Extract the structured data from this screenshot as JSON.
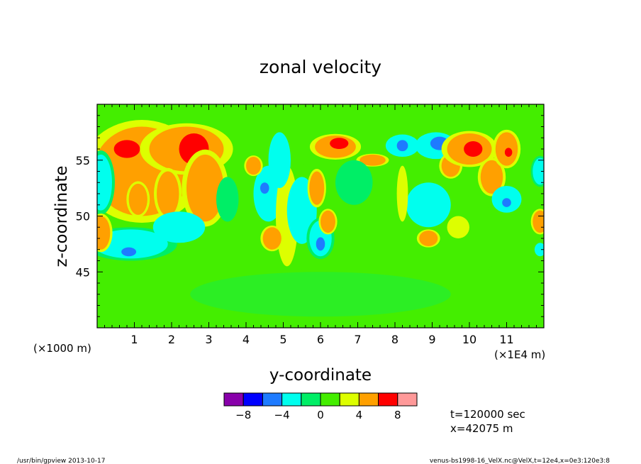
{
  "chart_data": {
    "type": "heatmap",
    "title": "zonal velocity",
    "xlabel": "y-coordinate",
    "ylabel": "z-coordinate",
    "x_scale_note": "(×1E4 m)",
    "y_scale_note": "(×1000 m)",
    "xlim": [
      0,
      12
    ],
    "ylim": [
      40,
      60
    ],
    "x_ticks": [
      1,
      2,
      3,
      4,
      5,
      6,
      7,
      8,
      9,
      10,
      11
    ],
    "y_ticks": [
      45,
      50,
      55
    ],
    "colorbar": {
      "colors": [
        "#8800aa",
        "#0000ff",
        "#1e7bff",
        "#00ffee",
        "#00ee66",
        "#44ee00",
        "#ddff00",
        "#ffa000",
        "#ff0000",
        "#ff9999"
      ],
      "tick_labels": [
        "−8",
        "−4",
        "0",
        "4",
        "8"
      ]
    },
    "annotations": {
      "time": "t=120000 sec",
      "xpos": "x=42075 m"
    },
    "blobs": [
      {
        "x": 1.2,
        "y": 54.0,
        "rx": 1.3,
        "ry": 4.0,
        "v": 4
      },
      {
        "x": 0.8,
        "y": 56.0,
        "rx": 0.35,
        "ry": 0.8,
        "v": 6
      },
      {
        "x": 2.4,
        "y": 56.0,
        "rx": 1.0,
        "ry": 2.0,
        "v": 4
      },
      {
        "x": 2.6,
        "y": 56.0,
        "rx": 0.4,
        "ry": 1.4,
        "v": 6
      },
      {
        "x": 1.1,
        "y": 51.5,
        "rx": 0.25,
        "ry": 1.4,
        "v": 5
      },
      {
        "x": 1.9,
        "y": 52.0,
        "rx": 0.3,
        "ry": 2.0,
        "v": 4
      },
      {
        "x": 2.9,
        "y": 52.5,
        "rx": 0.5,
        "ry": 3.0,
        "v": 4
      },
      {
        "x": 0.9,
        "y": 47.5,
        "rx": 1.0,
        "ry": 1.3,
        "v": -4
      },
      {
        "x": 0.85,
        "y": 46.8,
        "rx": 0.2,
        "ry": 0.4,
        "v": -6
      },
      {
        "x": 2.2,
        "y": 49.0,
        "rx": 0.7,
        "ry": 1.4,
        "v": -3
      },
      {
        "x": 0.1,
        "y": 53.0,
        "rx": 0.3,
        "ry": 2.5,
        "v": -4
      },
      {
        "x": 0.1,
        "y": 48.5,
        "rx": 0.25,
        "ry": 1.5,
        "v": 4
      },
      {
        "x": 4.6,
        "y": 52.0,
        "rx": 0.4,
        "ry": 2.5,
        "v": -3
      },
      {
        "x": 4.5,
        "y": 52.5,
        "rx": 0.12,
        "ry": 0.5,
        "v": -6
      },
      {
        "x": 4.2,
        "y": 54.5,
        "rx": 0.2,
        "ry": 0.8,
        "v": 4
      },
      {
        "x": 5.1,
        "y": 50.0,
        "rx": 0.3,
        "ry": 4.5,
        "v": 3
      },
      {
        "x": 4.9,
        "y": 55.0,
        "rx": 0.3,
        "ry": 2.5,
        "v": -3
      },
      {
        "x": 4.7,
        "y": 48.0,
        "rx": 0.25,
        "ry": 1.0,
        "v": 4
      },
      {
        "x": 5.5,
        "y": 50.5,
        "rx": 0.4,
        "ry": 3.0,
        "v": -3
      },
      {
        "x": 6.0,
        "y": 48.0,
        "rx": 0.3,
        "ry": 1.6,
        "v": -4
      },
      {
        "x": 6.0,
        "y": 47.5,
        "rx": 0.12,
        "ry": 0.6,
        "v": -6
      },
      {
        "x": 6.2,
        "y": 49.5,
        "rx": 0.2,
        "ry": 1.0,
        "v": 4
      },
      {
        "x": 5.9,
        "y": 52.5,
        "rx": 0.2,
        "ry": 1.5,
        "v": 4
      },
      {
        "x": 6.4,
        "y": 56.2,
        "rx": 0.55,
        "ry": 1.0,
        "v": 4
      },
      {
        "x": 6.5,
        "y": 56.5,
        "rx": 0.25,
        "ry": 0.5,
        "v": 6
      },
      {
        "x": 7.4,
        "y": 55.0,
        "rx": 0.35,
        "ry": 0.5,
        "v": 4
      },
      {
        "x": 8.2,
        "y": 56.3,
        "rx": 0.45,
        "ry": 1.0,
        "v": -3
      },
      {
        "x": 8.2,
        "y": 56.3,
        "rx": 0.15,
        "ry": 0.5,
        "v": -6
      },
      {
        "x": 9.1,
        "y": 56.3,
        "rx": 0.55,
        "ry": 1.2,
        "v": -3
      },
      {
        "x": 9.2,
        "y": 56.5,
        "rx": 0.25,
        "ry": 0.6,
        "v": -6
      },
      {
        "x": 8.9,
        "y": 51.0,
        "rx": 0.6,
        "ry": 2.0,
        "v": -3
      },
      {
        "x": 8.9,
        "y": 48.0,
        "rx": 0.25,
        "ry": 0.7,
        "v": 4
      },
      {
        "x": 8.2,
        "y": 52.0,
        "rx": 0.15,
        "ry": 2.5,
        "v": 3
      },
      {
        "x": 9.5,
        "y": 54.5,
        "rx": 0.25,
        "ry": 1.0,
        "v": 4
      },
      {
        "x": 10.0,
        "y": 56.0,
        "rx": 0.6,
        "ry": 1.4,
        "v": 4
      },
      {
        "x": 10.1,
        "y": 56.0,
        "rx": 0.25,
        "ry": 0.7,
        "v": 6
      },
      {
        "x": 10.6,
        "y": 53.5,
        "rx": 0.3,
        "ry": 1.5,
        "v": 4
      },
      {
        "x": 11.0,
        "y": 56.0,
        "rx": 0.3,
        "ry": 1.5,
        "v": 4
      },
      {
        "x": 11.05,
        "y": 55.7,
        "rx": 0.1,
        "ry": 0.4,
        "v": 6
      },
      {
        "x": 11.0,
        "y": 51.5,
        "rx": 0.4,
        "ry": 1.2,
        "v": -3
      },
      {
        "x": 11.0,
        "y": 51.2,
        "rx": 0.12,
        "ry": 0.4,
        "v": -6
      },
      {
        "x": 11.9,
        "y": 54.0,
        "rx": 0.2,
        "ry": 1.2,
        "v": -4
      },
      {
        "x": 11.9,
        "y": 49.5,
        "rx": 0.2,
        "ry": 1.0,
        "v": 4
      },
      {
        "x": 11.9,
        "y": 47.0,
        "rx": 0.15,
        "ry": 0.6,
        "v": -3
      },
      {
        "x": 3.5,
        "y": 51.5,
        "rx": 0.3,
        "ry": 2.0,
        "v": -2
      },
      {
        "x": 6.9,
        "y": 53.0,
        "rx": 0.5,
        "ry": 2.0,
        "v": -2
      },
      {
        "x": 9.7,
        "y": 49.0,
        "rx": 0.3,
        "ry": 1.0,
        "v": 3
      }
    ]
  },
  "footer": {
    "left": "/usr/bin/gpview  2013-10-17",
    "right": "venus-bs1998-16_VelX.nc@VelX,t=12e4,x=0e3:120e3:8"
  }
}
